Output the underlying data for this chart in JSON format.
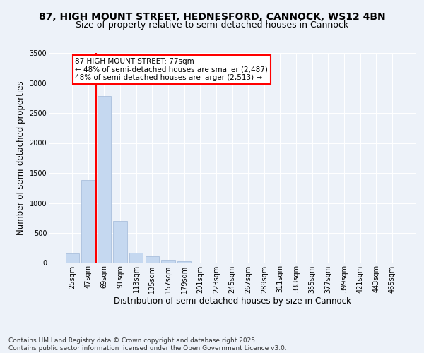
{
  "title_line1": "87, HIGH MOUNT STREET, HEDNESFORD, CANNOCK, WS12 4BN",
  "title_line2": "Size of property relative to semi-detached houses in Cannock",
  "xlabel": "Distribution of semi-detached houses by size in Cannock",
  "ylabel": "Number of semi-detached properties",
  "categories": [
    "25sqm",
    "47sqm",
    "69sqm",
    "91sqm",
    "113sqm",
    "135sqm",
    "157sqm",
    "179sqm",
    "201sqm",
    "223sqm",
    "245sqm",
    "267sqm",
    "289sqm",
    "311sqm",
    "333sqm",
    "355sqm",
    "377sqm",
    "399sqm",
    "421sqm",
    "443sqm",
    "465sqm"
  ],
  "values": [
    155,
    1380,
    2780,
    700,
    170,
    110,
    55,
    30,
    0,
    0,
    0,
    0,
    0,
    0,
    0,
    0,
    0,
    0,
    0,
    0,
    0
  ],
  "bar_color": "#c5d8f0",
  "bar_edge_color": "#a0b8d8",
  "vline_color": "red",
  "vline_pos": 2.0,
  "annotation_box_text": "87 HIGH MOUNT STREET: 77sqm\n← 48% of semi-detached houses are smaller (2,487)\n48% of semi-detached houses are larger (2,513) →",
  "ylim": [
    0,
    3500
  ],
  "yticks": [
    0,
    500,
    1000,
    1500,
    2000,
    2500,
    3000,
    3500
  ],
  "bg_color": "#edf2f9",
  "plot_bg_color": "#edf2f9",
  "footer_text": "Contains HM Land Registry data © Crown copyright and database right 2025.\nContains public sector information licensed under the Open Government Licence v3.0.",
  "title_fontsize": 10,
  "subtitle_fontsize": 9,
  "axis_label_fontsize": 8.5,
  "tick_fontsize": 7,
  "annotation_fontsize": 7.5,
  "footer_fontsize": 6.5
}
